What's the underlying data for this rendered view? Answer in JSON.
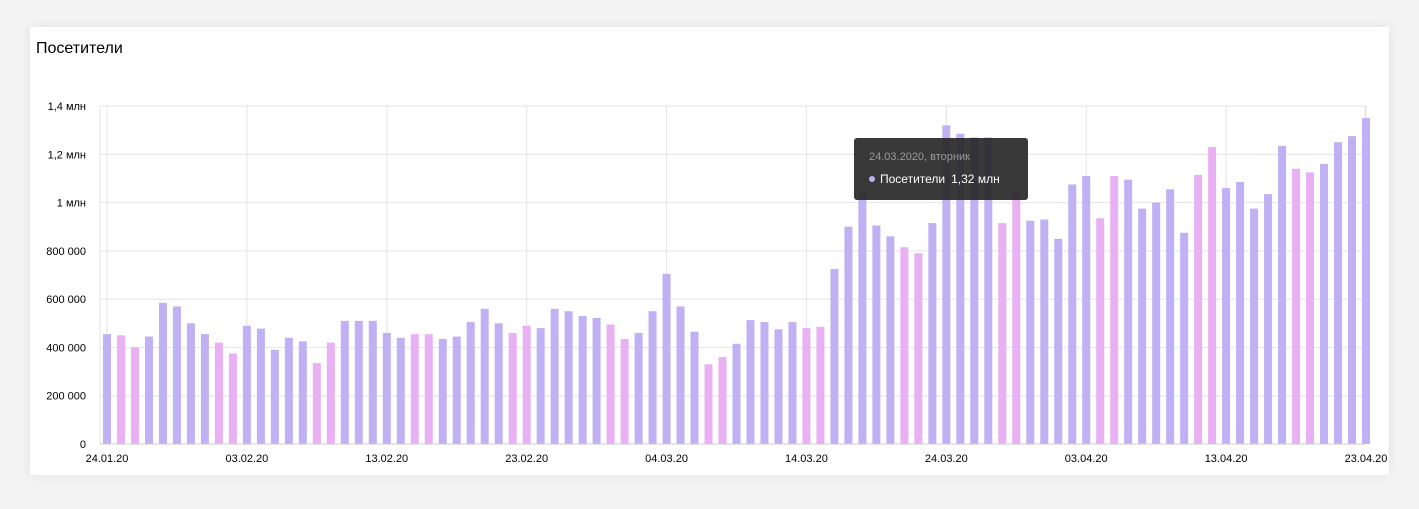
{
  "colors": {
    "weekday": "#bfb1f4",
    "weekend": "#e9b0f3",
    "holiday_label": "#b5182a",
    "grid": "#e4e4e4"
  },
  "chart_data": {
    "type": "bar",
    "title": "Посетители",
    "xlabel": "",
    "ylabel": "",
    "ylim": [
      0,
      1400000
    ],
    "yticks": [
      0,
      200000,
      400000,
      600000,
      800000,
      1000000,
      1200000,
      1400000
    ],
    "ytick_labels": [
      "0",
      "200 000",
      "400 000",
      "600 000",
      "800 000",
      "1 млн",
      "1,2 млн",
      "1,4 млн"
    ],
    "x_start": "24.01.20",
    "x_end": "23.04.20",
    "xtick_labels": [
      {
        "label": "24.01.20",
        "holiday": false
      },
      {
        "label": "03.02.20",
        "holiday": false
      },
      {
        "label": "13.02.20",
        "holiday": false
      },
      {
        "label": "23.02.20",
        "holiday": true
      },
      {
        "label": "04.03.20",
        "holiday": false
      },
      {
        "label": "14.03.20",
        "holiday": true
      },
      {
        "label": "24.03.20",
        "holiday": false
      },
      {
        "label": "03.04.20",
        "holiday": false
      },
      {
        "label": "13.04.20",
        "holiday": false
      },
      {
        "label": "23.04.20",
        "holiday": false
      }
    ],
    "grid": true,
    "series": [
      {
        "name": "Посетители",
        "values": [
          455000,
          450000,
          400000,
          445000,
          585000,
          570000,
          500000,
          455000,
          420000,
          375000,
          490000,
          478000,
          390000,
          440000,
          425000,
          335000,
          420000,
          510000,
          510000,
          510000,
          460000,
          440000,
          455000,
          455000,
          435000,
          445000,
          505000,
          560000,
          500000,
          460000,
          490000,
          480000,
          560000,
          550000,
          530000,
          522000,
          495000,
          435000,
          460000,
          550000,
          705000,
          570000,
          465000,
          330000,
          360000,
          415000,
          513000,
          505000,
          475000,
          505000,
          480000,
          485000,
          725000,
          900000,
          1040000,
          905000,
          860000,
          815000,
          790000,
          915000,
          1320000,
          1285000,
          1270000,
          1270000,
          915000,
          1040000,
          925000,
          930000,
          850000,
          1075000,
          1110000,
          935000,
          1110000,
          1095000,
          975000,
          1000000,
          1055000,
          875000,
          1115000,
          1230000,
          1060000,
          1085000,
          975000,
          1035000,
          1235000,
          1140000,
          1125000,
          1160000,
          1250000,
          1275000,
          1350000
        ],
        "weekend": [
          false,
          true,
          true,
          false,
          false,
          false,
          false,
          false,
          true,
          true,
          false,
          false,
          false,
          false,
          false,
          true,
          true,
          false,
          false,
          false,
          false,
          false,
          true,
          true,
          false,
          false,
          false,
          false,
          false,
          true,
          true,
          false,
          false,
          false,
          false,
          false,
          true,
          true,
          false,
          false,
          false,
          false,
          false,
          true,
          true,
          false,
          false,
          false,
          false,
          false,
          true,
          true,
          false,
          false,
          false,
          false,
          false,
          true,
          true,
          false,
          false,
          false,
          false,
          false,
          true,
          true,
          false,
          false,
          false,
          false,
          false,
          true,
          true,
          false,
          false,
          false,
          false,
          false,
          true,
          true,
          false,
          false,
          false,
          false,
          false,
          true,
          true,
          false,
          false,
          false,
          false
        ]
      }
    ]
  },
  "tooltip": {
    "date": "24.03.2020, вторник",
    "series_name": "Посетители",
    "value_label": "1,32 млн"
  }
}
